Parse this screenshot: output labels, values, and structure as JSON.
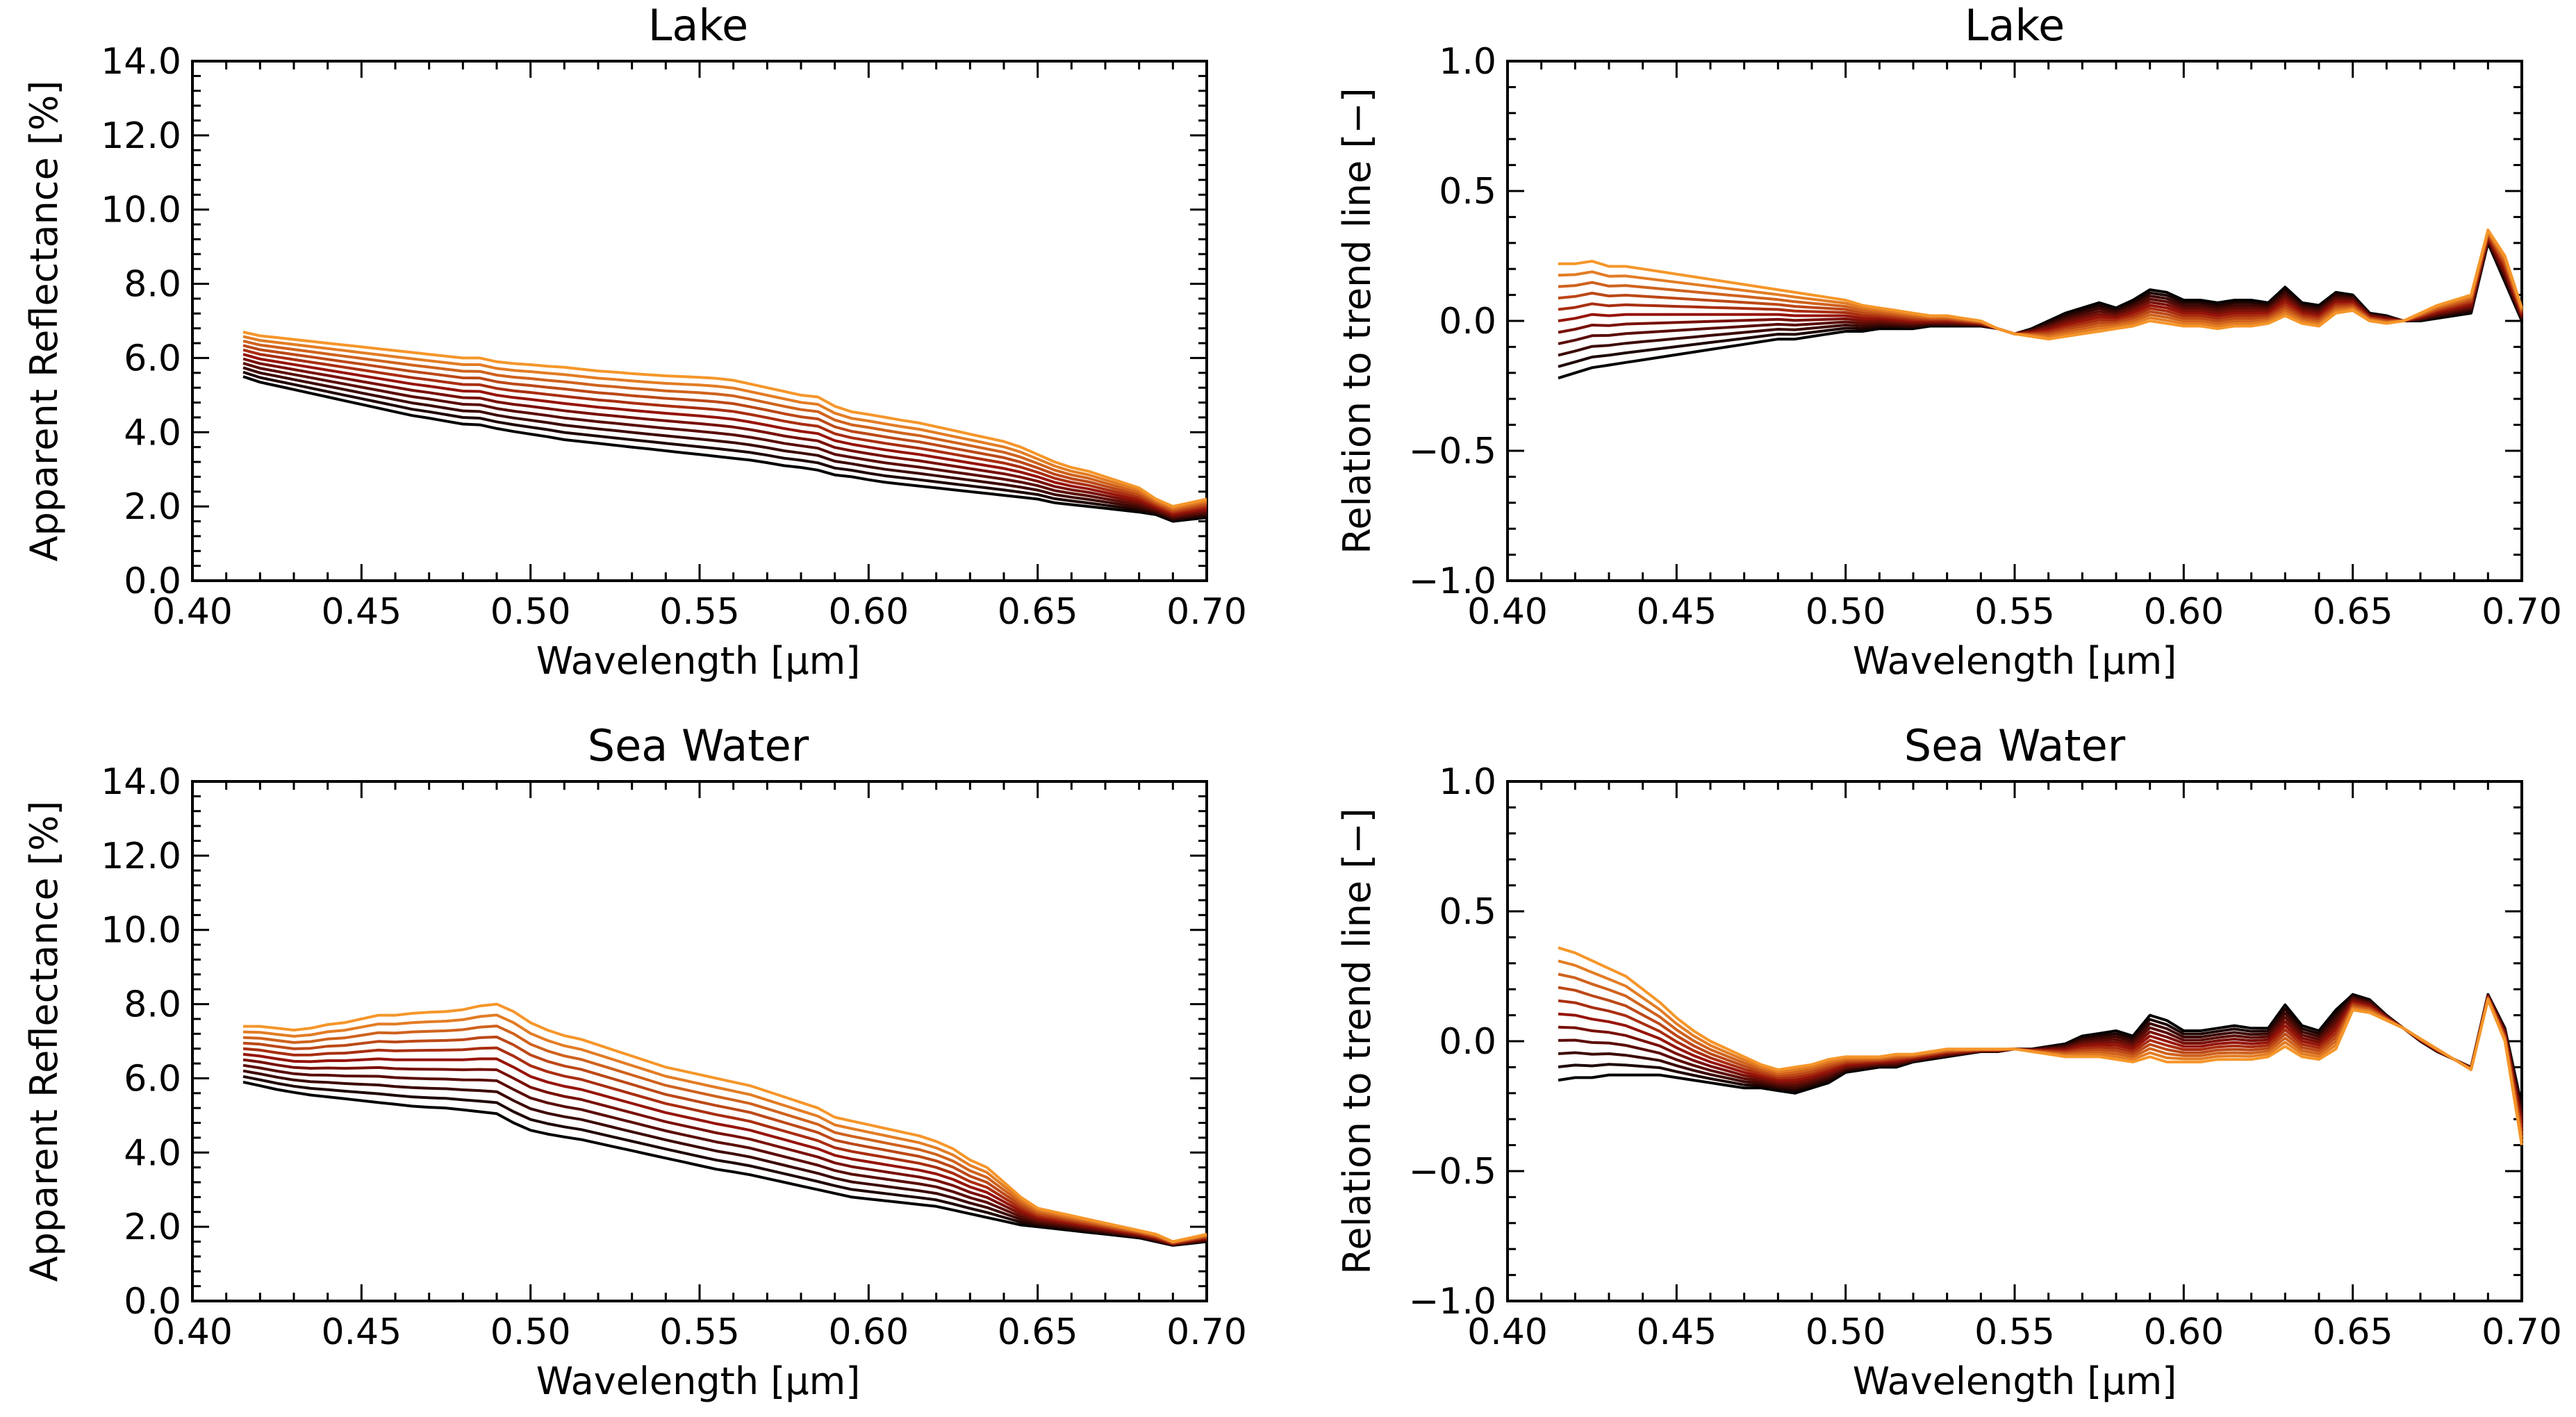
{
  "chart_data": [
    {
      "type": "line",
      "title": "Lake",
      "xlabel": "Wavelength [μm]",
      "ylabel": "Apparent Reflectance [%]",
      "xlim": [
        0.4,
        0.7
      ],
      "ylim": [
        0.0,
        14.0
      ],
      "xticks": [
        0.4,
        0.45,
        0.5,
        0.55,
        0.6,
        0.65,
        0.7
      ],
      "xtick_labels": [
        "0.40",
        "0.45",
        "0.50",
        "0.55",
        "0.60",
        "0.65",
        "0.70"
      ],
      "yticks": [
        0.0,
        2.0,
        4.0,
        6.0,
        8.0,
        10.0,
        12.0,
        14.0
      ],
      "ytick_labels": [
        "0.0",
        "2.0",
        "4.0",
        "6.0",
        "8.0",
        "10.0",
        "12.0",
        "14.0"
      ],
      "x": [
        0.415,
        0.42,
        0.425,
        0.43,
        0.435,
        0.44,
        0.445,
        0.45,
        0.455,
        0.46,
        0.465,
        0.47,
        0.475,
        0.48,
        0.485,
        0.49,
        0.495,
        0.5,
        0.505,
        0.51,
        0.515,
        0.52,
        0.525,
        0.53,
        0.535,
        0.54,
        0.545,
        0.55,
        0.555,
        0.56,
        0.565,
        0.57,
        0.575,
        0.58,
        0.585,
        0.59,
        0.595,
        0.6,
        0.605,
        0.61,
        0.615,
        0.62,
        0.625,
        0.63,
        0.635,
        0.64,
        0.645,
        0.65,
        0.655,
        0.66,
        0.665,
        0.67,
        0.675,
        0.68,
        0.685,
        0.69,
        0.695,
        0.7
      ],
      "series_count": 11,
      "low_series": [
        5.5,
        5.35,
        5.25,
        5.15,
        5.05,
        4.95,
        4.85,
        4.75,
        4.65,
        4.55,
        4.45,
        4.38,
        4.3,
        4.22,
        4.2,
        4.1,
        4.02,
        3.95,
        3.88,
        3.8,
        3.75,
        3.7,
        3.65,
        3.6,
        3.55,
        3.5,
        3.45,
        3.4,
        3.35,
        3.3,
        3.25,
        3.18,
        3.1,
        3.05,
        2.98,
        2.85,
        2.8,
        2.72,
        2.65,
        2.6,
        2.55,
        2.5,
        2.45,
        2.4,
        2.35,
        2.3,
        2.25,
        2.2,
        2.1,
        2.05,
        2.0,
        1.95,
        1.9,
        1.85,
        1.78,
        1.6,
        1.65,
        1.7
      ],
      "high_series": [
        6.7,
        6.6,
        6.55,
        6.5,
        6.45,
        6.4,
        6.35,
        6.3,
        6.25,
        6.2,
        6.15,
        6.1,
        6.05,
        6.0,
        6.0,
        5.9,
        5.85,
        5.82,
        5.78,
        5.75,
        5.7,
        5.65,
        5.62,
        5.58,
        5.55,
        5.52,
        5.5,
        5.48,
        5.45,
        5.4,
        5.3,
        5.2,
        5.1,
        5.0,
        4.95,
        4.7,
        4.55,
        4.48,
        4.4,
        4.32,
        4.25,
        4.15,
        4.05,
        3.95,
        3.85,
        3.75,
        3.6,
        3.4,
        3.2,
        3.05,
        2.95,
        2.8,
        2.65,
        2.5,
        2.2,
        2.0,
        2.1,
        2.2
      ]
    },
    {
      "type": "line",
      "title": "Lake",
      "xlabel": "Wavelength [μm]",
      "ylabel": "Relation to trend line [−]",
      "xlim": [
        0.4,
        0.7
      ],
      "ylim": [
        -1.0,
        1.0
      ],
      "xticks": [
        0.4,
        0.45,
        0.5,
        0.55,
        0.6,
        0.65,
        0.7
      ],
      "xtick_labels": [
        "0.40",
        "0.45",
        "0.50",
        "0.55",
        "0.60",
        "0.65",
        "0.70"
      ],
      "yticks": [
        -1.0,
        -0.5,
        0.0,
        0.5,
        1.0
      ],
      "ytick_labels": [
        "−1.0",
        "−0.5",
        "0.0",
        "0.5",
        "1.0"
      ],
      "x": [
        0.415,
        0.42,
        0.425,
        0.43,
        0.435,
        0.44,
        0.445,
        0.45,
        0.455,
        0.46,
        0.465,
        0.47,
        0.475,
        0.48,
        0.485,
        0.49,
        0.495,
        0.5,
        0.505,
        0.51,
        0.515,
        0.52,
        0.525,
        0.53,
        0.535,
        0.54,
        0.545,
        0.55,
        0.555,
        0.56,
        0.565,
        0.57,
        0.575,
        0.58,
        0.585,
        0.59,
        0.595,
        0.6,
        0.605,
        0.61,
        0.615,
        0.62,
        0.625,
        0.63,
        0.635,
        0.64,
        0.645,
        0.65,
        0.655,
        0.66,
        0.665,
        0.67,
        0.675,
        0.68,
        0.685,
        0.69,
        0.695,
        0.7
      ],
      "series_count": 11,
      "low_series": [
        -0.22,
        -0.2,
        -0.18,
        -0.17,
        -0.16,
        -0.15,
        -0.14,
        -0.13,
        -0.12,
        -0.11,
        -0.1,
        -0.09,
        -0.08,
        -0.07,
        -0.07,
        -0.06,
        -0.05,
        -0.04,
        -0.04,
        -0.03,
        -0.03,
        -0.03,
        -0.02,
        -0.02,
        -0.02,
        -0.02,
        -0.03,
        -0.05,
        -0.03,
        0.0,
        0.03,
        0.05,
        0.07,
        0.05,
        0.08,
        0.12,
        0.11,
        0.08,
        0.08,
        0.07,
        0.08,
        0.08,
        0.07,
        0.13,
        0.07,
        0.06,
        0.11,
        0.1,
        0.03,
        0.02,
        0.0,
        0.0,
        0.01,
        0.02,
        0.03,
        0.3,
        0.15,
        0.0
      ],
      "high_series": [
        0.22,
        0.22,
        0.23,
        0.21,
        0.21,
        0.2,
        0.19,
        0.18,
        0.17,
        0.16,
        0.15,
        0.14,
        0.13,
        0.12,
        0.11,
        0.1,
        0.09,
        0.08,
        0.06,
        0.05,
        0.04,
        0.03,
        0.02,
        0.02,
        0.01,
        0.0,
        -0.03,
        -0.05,
        -0.06,
        -0.07,
        -0.06,
        -0.05,
        -0.04,
        -0.03,
        -0.02,
        0.0,
        -0.01,
        -0.02,
        -0.02,
        -0.03,
        -0.02,
        -0.02,
        -0.01,
        0.02,
        -0.01,
        -0.02,
        0.03,
        0.04,
        0.0,
        -0.01,
        0.0,
        0.03,
        0.06,
        0.08,
        0.1,
        0.35,
        0.25,
        0.05
      ]
    },
    {
      "type": "line",
      "title": "Sea Water",
      "xlabel": "Wavelength [μm]",
      "ylabel": "Apparent Reflectance [%]",
      "xlim": [
        0.4,
        0.7
      ],
      "ylim": [
        0.0,
        14.0
      ],
      "xticks": [
        0.4,
        0.45,
        0.5,
        0.55,
        0.6,
        0.65,
        0.7
      ],
      "xtick_labels": [
        "0.40",
        "0.45",
        "0.50",
        "0.55",
        "0.60",
        "0.65",
        "0.70"
      ],
      "yticks": [
        0.0,
        2.0,
        4.0,
        6.0,
        8.0,
        10.0,
        12.0,
        14.0
      ],
      "ytick_labels": [
        "0.0",
        "2.0",
        "4.0",
        "6.0",
        "8.0",
        "10.0",
        "12.0",
        "14.0"
      ],
      "x": [
        0.415,
        0.42,
        0.425,
        0.43,
        0.435,
        0.44,
        0.445,
        0.45,
        0.455,
        0.46,
        0.465,
        0.47,
        0.475,
        0.48,
        0.485,
        0.49,
        0.495,
        0.5,
        0.505,
        0.51,
        0.515,
        0.52,
        0.525,
        0.53,
        0.535,
        0.54,
        0.545,
        0.55,
        0.555,
        0.56,
        0.565,
        0.57,
        0.575,
        0.58,
        0.585,
        0.59,
        0.595,
        0.6,
        0.605,
        0.61,
        0.615,
        0.62,
        0.625,
        0.63,
        0.635,
        0.64,
        0.645,
        0.65,
        0.655,
        0.66,
        0.665,
        0.67,
        0.675,
        0.68,
        0.685,
        0.69,
        0.695,
        0.7
      ],
      "series_count": 11,
      "low_series": [
        5.9,
        5.8,
        5.7,
        5.62,
        5.55,
        5.5,
        5.45,
        5.4,
        5.35,
        5.3,
        5.25,
        5.22,
        5.2,
        5.15,
        5.1,
        5.05,
        4.8,
        4.6,
        4.5,
        4.42,
        4.35,
        4.25,
        4.15,
        4.05,
        3.95,
        3.85,
        3.75,
        3.65,
        3.55,
        3.48,
        3.4,
        3.3,
        3.2,
        3.1,
        3.0,
        2.9,
        2.8,
        2.75,
        2.7,
        2.65,
        2.6,
        2.55,
        2.45,
        2.35,
        2.25,
        2.15,
        2.05,
        2.0,
        1.95,
        1.9,
        1.85,
        1.8,
        1.75,
        1.7,
        1.6,
        1.5,
        1.55,
        1.6
      ],
      "high_series": [
        7.4,
        7.4,
        7.35,
        7.3,
        7.35,
        7.45,
        7.5,
        7.6,
        7.7,
        7.7,
        7.75,
        7.78,
        7.8,
        7.85,
        7.95,
        8.0,
        7.8,
        7.5,
        7.3,
        7.15,
        7.05,
        6.9,
        6.75,
        6.6,
        6.45,
        6.3,
        6.2,
        6.1,
        6.0,
        5.9,
        5.8,
        5.65,
        5.5,
        5.35,
        5.2,
        4.95,
        4.85,
        4.75,
        4.65,
        4.55,
        4.45,
        4.3,
        4.1,
        3.8,
        3.6,
        3.2,
        2.8,
        2.5,
        2.4,
        2.3,
        2.2,
        2.1,
        2.0,
        1.9,
        1.8,
        1.6,
        1.7,
        1.8
      ]
    },
    {
      "type": "line",
      "title": "Sea Water",
      "xlabel": "Wavelength [μm]",
      "ylabel": "Relation to trend line [−]",
      "xlim": [
        0.4,
        0.7
      ],
      "ylim": [
        -1.0,
        1.0
      ],
      "xticks": [
        0.4,
        0.45,
        0.5,
        0.55,
        0.6,
        0.65,
        0.7
      ],
      "xtick_labels": [
        "0.40",
        "0.45",
        "0.50",
        "0.55",
        "0.60",
        "0.65",
        "0.70"
      ],
      "yticks": [
        -1.0,
        -0.5,
        0.0,
        0.5,
        1.0
      ],
      "ytick_labels": [
        "−1.0",
        "−0.5",
        "0.0",
        "0.5",
        "1.0"
      ],
      "x": [
        0.415,
        0.42,
        0.425,
        0.43,
        0.435,
        0.44,
        0.445,
        0.45,
        0.455,
        0.46,
        0.465,
        0.47,
        0.475,
        0.48,
        0.485,
        0.49,
        0.495,
        0.5,
        0.505,
        0.51,
        0.515,
        0.52,
        0.525,
        0.53,
        0.535,
        0.54,
        0.545,
        0.55,
        0.555,
        0.56,
        0.565,
        0.57,
        0.575,
        0.58,
        0.585,
        0.59,
        0.595,
        0.6,
        0.605,
        0.61,
        0.615,
        0.62,
        0.625,
        0.63,
        0.635,
        0.64,
        0.645,
        0.65,
        0.655,
        0.66,
        0.665,
        0.67,
        0.675,
        0.68,
        0.685,
        0.69,
        0.695,
        0.7
      ],
      "series_count": 11,
      "low_series": [
        -0.15,
        -0.14,
        -0.14,
        -0.13,
        -0.13,
        -0.13,
        -0.13,
        -0.14,
        -0.15,
        -0.16,
        -0.17,
        -0.18,
        -0.18,
        -0.19,
        -0.2,
        -0.18,
        -0.16,
        -0.12,
        -0.11,
        -0.1,
        -0.1,
        -0.08,
        -0.07,
        -0.06,
        -0.05,
        -0.04,
        -0.04,
        -0.03,
        -0.03,
        -0.02,
        -0.01,
        0.02,
        0.03,
        0.04,
        0.02,
        0.1,
        0.08,
        0.04,
        0.04,
        0.05,
        0.06,
        0.05,
        0.05,
        0.14,
        0.06,
        0.04,
        0.12,
        0.18,
        0.16,
        0.1,
        0.05,
        0.0,
        -0.04,
        -0.07,
        -0.1,
        0.18,
        0.05,
        -0.25
      ],
      "high_series": [
        0.36,
        0.34,
        0.31,
        0.28,
        0.25,
        0.2,
        0.15,
        0.09,
        0.04,
        0.0,
        -0.03,
        -0.06,
        -0.09,
        -0.11,
        -0.1,
        -0.09,
        -0.07,
        -0.06,
        -0.06,
        -0.06,
        -0.05,
        -0.05,
        -0.04,
        -0.03,
        -0.03,
        -0.03,
        -0.03,
        -0.03,
        -0.04,
        -0.05,
        -0.06,
        -0.06,
        -0.06,
        -0.07,
        -0.08,
        -0.06,
        -0.08,
        -0.08,
        -0.08,
        -0.07,
        -0.07,
        -0.07,
        -0.06,
        -0.02,
        -0.06,
        -0.07,
        -0.03,
        0.12,
        0.11,
        0.08,
        0.05,
        0.01,
        -0.03,
        -0.07,
        -0.11,
        0.16,
        0.0,
        -0.4
      ]
    }
  ],
  "colors": {
    "darkest": "#000000",
    "lightest": "#f5962a"
  }
}
